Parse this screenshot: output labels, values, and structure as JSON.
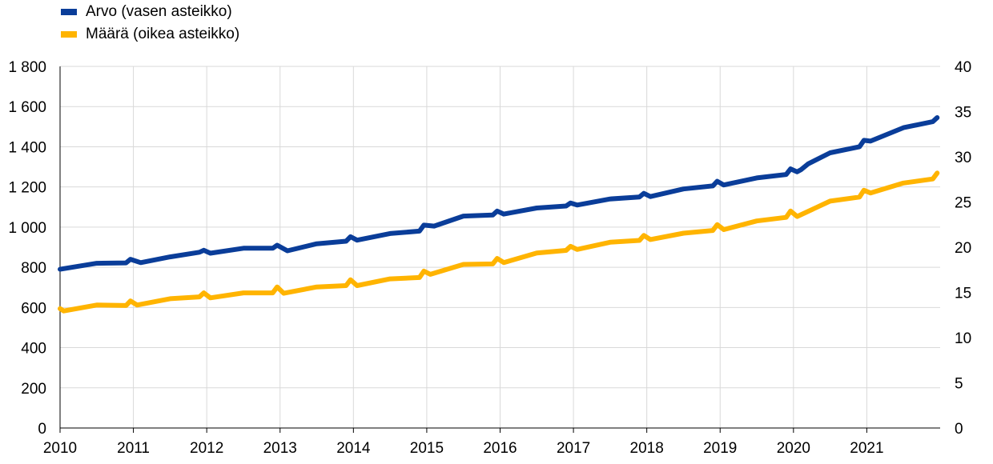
{
  "chart_data": {
    "type": "line",
    "title": "",
    "legend_placement": "top-left",
    "grid": {
      "horizontal": true,
      "vertical": true
    },
    "x_ticks": [
      "2010",
      "2011",
      "2012",
      "2013",
      "2014",
      "2015",
      "2016",
      "2017",
      "2018",
      "2019",
      "2020",
      "2021"
    ],
    "x_range": [
      2010.0,
      2022.0
    ],
    "left_axis": {
      "range": [
        0,
        1800
      ],
      "ticks": [
        0,
        200,
        400,
        600,
        800,
        1000,
        1200,
        1400,
        1600,
        1800
      ],
      "tick_labels": [
        "0",
        "200",
        "400",
        "600",
        "800",
        "1 000",
        "1 200",
        "1 400",
        "1 600",
        "1 800"
      ]
    },
    "right_axis": {
      "range": [
        0,
        40
      ],
      "ticks": [
        0,
        5,
        10,
        15,
        20,
        25,
        30,
        35,
        40
      ],
      "tick_labels": [
        "0",
        "5",
        "10",
        "15",
        "20",
        "25",
        "30",
        "35",
        "40"
      ]
    },
    "series": [
      {
        "name": "Arvo (vasen asteikko)",
        "axis": "left",
        "color": "#0a3d99",
        "points": [
          [
            2010.0,
            790
          ],
          [
            2010.5,
            820
          ],
          [
            2010.9,
            822
          ],
          [
            2010.96,
            840
          ],
          [
            2011.1,
            823
          ],
          [
            2011.5,
            852
          ],
          [
            2011.9,
            875
          ],
          [
            2011.96,
            885
          ],
          [
            2012.05,
            870
          ],
          [
            2012.5,
            895
          ],
          [
            2012.9,
            895
          ],
          [
            2012.96,
            910
          ],
          [
            2013.1,
            882
          ],
          [
            2013.5,
            917
          ],
          [
            2013.9,
            930
          ],
          [
            2013.96,
            952
          ],
          [
            2014.05,
            935
          ],
          [
            2014.5,
            968
          ],
          [
            2014.9,
            980
          ],
          [
            2014.96,
            1010
          ],
          [
            2015.1,
            1005
          ],
          [
            2015.5,
            1055
          ],
          [
            2015.9,
            1060
          ],
          [
            2015.96,
            1080
          ],
          [
            2016.05,
            1065
          ],
          [
            2016.5,
            1095
          ],
          [
            2016.9,
            1105
          ],
          [
            2016.96,
            1120
          ],
          [
            2017.05,
            1110
          ],
          [
            2017.5,
            1140
          ],
          [
            2017.9,
            1150
          ],
          [
            2017.96,
            1168
          ],
          [
            2018.05,
            1152
          ],
          [
            2018.5,
            1190
          ],
          [
            2018.9,
            1205
          ],
          [
            2018.96,
            1228
          ],
          [
            2019.05,
            1210
          ],
          [
            2019.5,
            1245
          ],
          [
            2019.9,
            1262
          ],
          [
            2019.96,
            1290
          ],
          [
            2020.05,
            1275
          ],
          [
            2020.1,
            1285
          ],
          [
            2020.2,
            1315
          ],
          [
            2020.5,
            1370
          ],
          [
            2020.9,
            1400
          ],
          [
            2020.96,
            1432
          ],
          [
            2021.05,
            1428
          ],
          [
            2021.5,
            1495
          ],
          [
            2021.9,
            1525
          ],
          [
            2021.96,
            1545
          ]
        ]
      },
      {
        "name": "Määrä (oikea asteikko)",
        "axis": "right",
        "color": "#ffb400",
        "points": [
          [
            2010.0,
            13.2
          ],
          [
            2010.05,
            12.95
          ],
          [
            2010.5,
            13.6
          ],
          [
            2010.9,
            13.55
          ],
          [
            2010.96,
            14.05
          ],
          [
            2011.05,
            13.6
          ],
          [
            2011.5,
            14.3
          ],
          [
            2011.9,
            14.5
          ],
          [
            2011.96,
            14.95
          ],
          [
            2012.05,
            14.4
          ],
          [
            2012.5,
            14.95
          ],
          [
            2012.9,
            14.95
          ],
          [
            2012.96,
            15.6
          ],
          [
            2013.05,
            14.9
          ],
          [
            2013.5,
            15.6
          ],
          [
            2013.9,
            15.75
          ],
          [
            2013.96,
            16.4
          ],
          [
            2014.05,
            15.75
          ],
          [
            2014.5,
            16.5
          ],
          [
            2014.9,
            16.65
          ],
          [
            2014.96,
            17.35
          ],
          [
            2015.05,
            17.0
          ],
          [
            2015.5,
            18.1
          ],
          [
            2015.9,
            18.15
          ],
          [
            2015.96,
            18.75
          ],
          [
            2016.05,
            18.3
          ],
          [
            2016.5,
            19.35
          ],
          [
            2016.9,
            19.65
          ],
          [
            2016.96,
            20.1
          ],
          [
            2017.05,
            19.75
          ],
          [
            2017.5,
            20.55
          ],
          [
            2017.9,
            20.75
          ],
          [
            2017.96,
            21.3
          ],
          [
            2018.05,
            20.85
          ],
          [
            2018.5,
            21.55
          ],
          [
            2018.9,
            21.85
          ],
          [
            2018.96,
            22.5
          ],
          [
            2019.05,
            21.95
          ],
          [
            2019.5,
            22.9
          ],
          [
            2019.9,
            23.3
          ],
          [
            2019.96,
            24.0
          ],
          [
            2020.05,
            23.4
          ],
          [
            2020.5,
            25.1
          ],
          [
            2020.9,
            25.55
          ],
          [
            2020.96,
            26.3
          ],
          [
            2021.05,
            26.0
          ],
          [
            2021.5,
            27.1
          ],
          [
            2021.9,
            27.55
          ],
          [
            2021.96,
            28.2
          ]
        ]
      }
    ]
  }
}
